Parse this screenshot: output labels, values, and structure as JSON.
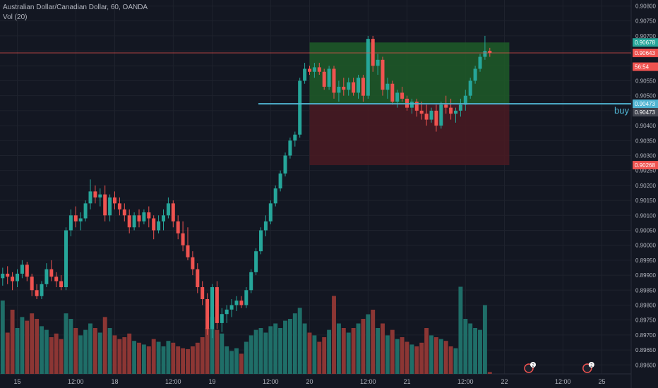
{
  "header": {
    "symbol_line": "Australian Dollar/Canadian Dollar, 60, OANDA",
    "volume_line": "Vol (20)"
  },
  "colors": {
    "background": "#131722",
    "grid": "#1e222d",
    "up": "#26a69a",
    "down": "#ef5350",
    "vol_up": "#1f6e68",
    "vol_down": "#8c3634",
    "axis_text": "#b2b5be",
    "entry_line": "#4fb3d1",
    "profit_zone": "#1f5c28",
    "loss_zone": "#4a1a22",
    "last_price_tag": "#ef5350"
  },
  "chart_data": {
    "type": "candlestick",
    "title": "Australian Dollar/Canadian Dollar, 60, OANDA",
    "indicator": "Vol (20)",
    "y_range": [
      0.8957,
      0.9082
    ],
    "y_ticks": [
      "0.90800",
      "0.90750",
      "0.90700",
      "0.90650",
      "0.90600",
      "0.90550",
      "0.90500",
      "0.90450",
      "0.90400",
      "0.90350",
      "0.90300",
      "0.90250",
      "0.90200",
      "0.90150",
      "0.90100",
      "0.90050",
      "0.90000",
      "0.89950",
      "0.89900",
      "0.89850",
      "0.89800",
      "0.89750",
      "0.89700",
      "0.89650",
      "0.89600"
    ],
    "x_ticks": [
      {
        "label": "15",
        "bar": 5
      },
      {
        "label": "12:00",
        "bar": 17
      },
      {
        "label": "18",
        "bar": 25
      },
      {
        "label": "12:00",
        "bar": 37
      },
      {
        "label": "19",
        "bar": 45
      },
      {
        "label": "12:00",
        "bar": 57
      },
      {
        "label": "20",
        "bar": 65
      },
      {
        "label": "12:00",
        "bar": 77
      },
      {
        "label": "21",
        "bar": 85
      },
      {
        "label": "12:00",
        "bar": 97
      },
      {
        "label": "22",
        "bar": 105
      },
      {
        "label": "12:00",
        "bar": 117
      },
      {
        "label": "25",
        "bar": 125
      }
    ],
    "candles": [
      {
        "o": 0.899,
        "h": 0.8994,
        "l": 0.8987,
        "c": 0.8992,
        "v": 0.9
      },
      {
        "o": 0.8992,
        "h": 0.8995,
        "l": 0.8988,
        "c": 0.8989,
        "v": 0.55
      },
      {
        "o": 0.8989,
        "h": 0.89925,
        "l": 0.89865,
        "c": 0.89905,
        "v": 0.8
      },
      {
        "o": 0.89905,
        "h": 0.8993,
        "l": 0.8987,
        "c": 0.89895,
        "v": 0.45
      },
      {
        "o": 0.89895,
        "h": 0.8991,
        "l": 0.8985,
        "c": 0.8988,
        "v": 0.7
      },
      {
        "o": 0.8988,
        "h": 0.8992,
        "l": 0.8986,
        "c": 0.89905,
        "v": 0.5
      },
      {
        "o": 0.89905,
        "h": 0.8995,
        "l": 0.8989,
        "c": 0.89935,
        "v": 0.62
      },
      {
        "o": 0.89935,
        "h": 0.89945,
        "l": 0.8988,
        "c": 0.89895,
        "v": 0.58
      },
      {
        "o": 0.89895,
        "h": 0.89905,
        "l": 0.8983,
        "c": 0.8985,
        "v": 0.66
      },
      {
        "o": 0.8985,
        "h": 0.8987,
        "l": 0.8982,
        "c": 0.8983,
        "v": 0.6
      },
      {
        "o": 0.8983,
        "h": 0.8988,
        "l": 0.8982,
        "c": 0.8987,
        "v": 0.52
      },
      {
        "o": 0.8987,
        "h": 0.8994,
        "l": 0.8986,
        "c": 0.8992,
        "v": 0.48
      },
      {
        "o": 0.8992,
        "h": 0.8995,
        "l": 0.8988,
        "c": 0.89895,
        "v": 0.4
      },
      {
        "o": 0.89895,
        "h": 0.8991,
        "l": 0.8986,
        "c": 0.8988,
        "v": 0.44
      },
      {
        "o": 0.8988,
        "h": 0.899,
        "l": 0.8985,
        "c": 0.8986,
        "v": 0.38
      },
      {
        "o": 0.8986,
        "h": 0.9006,
        "l": 0.8985,
        "c": 0.9005,
        "v": 0.66
      },
      {
        "o": 0.9005,
        "h": 0.9012,
        "l": 0.9003,
        "c": 0.901,
        "v": 0.6
      },
      {
        "o": 0.901,
        "h": 0.9013,
        "l": 0.9006,
        "c": 0.9008,
        "v": 0.5
      },
      {
        "o": 0.9008,
        "h": 0.9011,
        "l": 0.9005,
        "c": 0.9009,
        "v": 0.42
      },
      {
        "o": 0.9009,
        "h": 0.9015,
        "l": 0.9008,
        "c": 0.9014,
        "v": 0.48
      },
      {
        "o": 0.9014,
        "h": 0.9022,
        "l": 0.9012,
        "c": 0.9018,
        "v": 0.55
      },
      {
        "o": 0.9018,
        "h": 0.902,
        "l": 0.9014,
        "c": 0.9016,
        "v": 0.5
      },
      {
        "o": 0.9016,
        "h": 0.9019,
        "l": 0.9013,
        "c": 0.9017,
        "v": 0.45
      },
      {
        "o": 0.9017,
        "h": 0.902,
        "l": 0.9008,
        "c": 0.901,
        "v": 0.62
      },
      {
        "o": 0.901,
        "h": 0.9017,
        "l": 0.9008,
        "c": 0.9016,
        "v": 0.5
      },
      {
        "o": 0.9016,
        "h": 0.9018,
        "l": 0.9012,
        "c": 0.9014,
        "v": 0.42
      },
      {
        "o": 0.9014,
        "h": 0.9016,
        "l": 0.901,
        "c": 0.9012,
        "v": 0.38
      },
      {
        "o": 0.9012,
        "h": 0.9014,
        "l": 0.9008,
        "c": 0.901,
        "v": 0.4
      },
      {
        "o": 0.901,
        "h": 0.9012,
        "l": 0.9004,
        "c": 0.9006,
        "v": 0.44
      },
      {
        "o": 0.9006,
        "h": 0.9011,
        "l": 0.9005,
        "c": 0.901,
        "v": 0.36
      },
      {
        "o": 0.901,
        "h": 0.9012,
        "l": 0.9006,
        "c": 0.9008,
        "v": 0.34
      },
      {
        "o": 0.9008,
        "h": 0.9012,
        "l": 0.9007,
        "c": 0.9011,
        "v": 0.32
      },
      {
        "o": 0.9011,
        "h": 0.9013,
        "l": 0.9006,
        "c": 0.9009,
        "v": 0.3
      },
      {
        "o": 0.9009,
        "h": 0.901,
        "l": 0.9002,
        "c": 0.9005,
        "v": 0.38
      },
      {
        "o": 0.9005,
        "h": 0.901,
        "l": 0.9004,
        "c": 0.9008,
        "v": 0.35
      },
      {
        "o": 0.9008,
        "h": 0.9012,
        "l": 0.9005,
        "c": 0.901,
        "v": 0.3
      },
      {
        "o": 0.901,
        "h": 0.9016,
        "l": 0.9009,
        "c": 0.9014,
        "v": 0.36
      },
      {
        "o": 0.9014,
        "h": 0.9015,
        "l": 0.9006,
        "c": 0.9008,
        "v": 0.34
      },
      {
        "o": 0.9008,
        "h": 0.901,
        "l": 0.9002,
        "c": 0.9004,
        "v": 0.3
      },
      {
        "o": 0.9004,
        "h": 0.9008,
        "l": 0.8998,
        "c": 0.9,
        "v": 0.28
      },
      {
        "o": 0.9,
        "h": 0.9006,
        "l": 0.8995,
        "c": 0.8996,
        "v": 0.27
      },
      {
        "o": 0.8996,
        "h": 0.8998,
        "l": 0.899,
        "c": 0.8992,
        "v": 0.3
      },
      {
        "o": 0.8992,
        "h": 0.8994,
        "l": 0.8984,
        "c": 0.8986,
        "v": 0.34
      },
      {
        "o": 0.8986,
        "h": 0.8988,
        "l": 0.898,
        "c": 0.8982,
        "v": 0.4
      },
      {
        "o": 0.8982,
        "h": 0.8984,
        "l": 0.897,
        "c": 0.8972,
        "v": 0.5
      },
      {
        "o": 0.8972,
        "h": 0.8987,
        "l": 0.8969,
        "c": 0.8986,
        "v": 0.62
      },
      {
        "o": 0.8986,
        "h": 0.8988,
        "l": 0.8972,
        "c": 0.8974,
        "v": 0.48
      },
      {
        "o": 0.8974,
        "h": 0.8979,
        "l": 0.8971,
        "c": 0.8977,
        "v": 0.44
      },
      {
        "o": 0.8977,
        "h": 0.898,
        "l": 0.8974,
        "c": 0.89785,
        "v": 0.3
      },
      {
        "o": 0.89785,
        "h": 0.8982,
        "l": 0.8976,
        "c": 0.898,
        "v": 0.25
      },
      {
        "o": 0.898,
        "h": 0.8983,
        "l": 0.8978,
        "c": 0.89815,
        "v": 0.28
      },
      {
        "o": 0.89815,
        "h": 0.8983,
        "l": 0.8979,
        "c": 0.898,
        "v": 0.22
      },
      {
        "o": 0.898,
        "h": 0.8986,
        "l": 0.8979,
        "c": 0.8985,
        "v": 0.35
      },
      {
        "o": 0.8985,
        "h": 0.8992,
        "l": 0.8984,
        "c": 0.8991,
        "v": 0.42
      },
      {
        "o": 0.8991,
        "h": 0.8999,
        "l": 0.899,
        "c": 0.8998,
        "v": 0.48
      },
      {
        "o": 0.8998,
        "h": 0.9006,
        "l": 0.8997,
        "c": 0.9005,
        "v": 0.5
      },
      {
        "o": 0.9005,
        "h": 0.901,
        "l": 0.9003,
        "c": 0.9008,
        "v": 0.45
      },
      {
        "o": 0.9008,
        "h": 0.9015,
        "l": 0.9007,
        "c": 0.9014,
        "v": 0.52
      },
      {
        "o": 0.9014,
        "h": 0.902,
        "l": 0.9013,
        "c": 0.9019,
        "v": 0.55
      },
      {
        "o": 0.9019,
        "h": 0.9025,
        "l": 0.9018,
        "c": 0.9024,
        "v": 0.5
      },
      {
        "o": 0.9024,
        "h": 0.9031,
        "l": 0.9023,
        "c": 0.903,
        "v": 0.58
      },
      {
        "o": 0.903,
        "h": 0.9036,
        "l": 0.9029,
        "c": 0.9035,
        "v": 0.6
      },
      {
        "o": 0.9035,
        "h": 0.9038,
        "l": 0.9033,
        "c": 0.9037,
        "v": 0.66
      },
      {
        "o": 0.9037,
        "h": 0.9056,
        "l": 0.9036,
        "c": 0.9055,
        "v": 0.72
      },
      {
        "o": 0.9055,
        "h": 0.9061,
        "l": 0.9054,
        "c": 0.9059,
        "v": 0.55
      },
      {
        "o": 0.9059,
        "h": 0.906,
        "l": 0.9057,
        "c": 0.9058,
        "v": 0.45
      },
      {
        "o": 0.9058,
        "h": 0.9061,
        "l": 0.9056,
        "c": 0.90595,
        "v": 0.42
      },
      {
        "o": 0.90595,
        "h": 0.9061,
        "l": 0.9057,
        "c": 0.9058,
        "v": 0.35
      },
      {
        "o": 0.9058,
        "h": 0.9059,
        "l": 0.9052,
        "c": 0.9053,
        "v": 0.4
      },
      {
        "o": 0.9053,
        "h": 0.906,
        "l": 0.9052,
        "c": 0.9059,
        "v": 0.48
      },
      {
        "o": 0.9059,
        "h": 0.906,
        "l": 0.9049,
        "c": 0.9051,
        "v": 0.85
      },
      {
        "o": 0.9051,
        "h": 0.9055,
        "l": 0.9048,
        "c": 0.9053,
        "v": 0.55
      },
      {
        "o": 0.9053,
        "h": 0.9056,
        "l": 0.905,
        "c": 0.9052,
        "v": 0.5
      },
      {
        "o": 0.9052,
        "h": 0.9056,
        "l": 0.905,
        "c": 0.90545,
        "v": 0.45
      },
      {
        "o": 0.90545,
        "h": 0.9056,
        "l": 0.905,
        "c": 0.9051,
        "v": 0.5
      },
      {
        "o": 0.9051,
        "h": 0.9057,
        "l": 0.9049,
        "c": 0.9056,
        "v": 0.55
      },
      {
        "o": 0.9056,
        "h": 0.9057,
        "l": 0.9048,
        "c": 0.905,
        "v": 0.6
      },
      {
        "o": 0.905,
        "h": 0.907,
        "l": 0.9049,
        "c": 0.9069,
        "v": 0.65
      },
      {
        "o": 0.9069,
        "h": 0.907,
        "l": 0.9058,
        "c": 0.906,
        "v": 0.7
      },
      {
        "o": 0.906,
        "h": 0.9064,
        "l": 0.9057,
        "c": 0.9062,
        "v": 0.5
      },
      {
        "o": 0.9062,
        "h": 0.9063,
        "l": 0.905,
        "c": 0.9052,
        "v": 0.55
      },
      {
        "o": 0.9052,
        "h": 0.9056,
        "l": 0.9049,
        "c": 0.9054,
        "v": 0.42
      },
      {
        "o": 0.9054,
        "h": 0.9055,
        "l": 0.9047,
        "c": 0.9048,
        "v": 0.48
      },
      {
        "o": 0.9048,
        "h": 0.9052,
        "l": 0.9046,
        "c": 0.9051,
        "v": 0.38
      },
      {
        "o": 0.9051,
        "h": 0.9053,
        "l": 0.9048,
        "c": 0.9049,
        "v": 0.4
      },
      {
        "o": 0.9049,
        "h": 0.905,
        "l": 0.9045,
        "c": 0.9046,
        "v": 0.35
      },
      {
        "o": 0.9046,
        "h": 0.9049,
        "l": 0.9044,
        "c": 0.9048,
        "v": 0.32
      },
      {
        "o": 0.9048,
        "h": 0.9049,
        "l": 0.9043,
        "c": 0.9045,
        "v": 0.3
      },
      {
        "o": 0.9045,
        "h": 0.9048,
        "l": 0.9042,
        "c": 0.9044,
        "v": 0.34
      },
      {
        "o": 0.9044,
        "h": 0.9047,
        "l": 0.904,
        "c": 0.9042,
        "v": 0.5
      },
      {
        "o": 0.9042,
        "h": 0.9046,
        "l": 0.9041,
        "c": 0.9045,
        "v": 0.42
      },
      {
        "o": 0.9045,
        "h": 0.9047,
        "l": 0.9038,
        "c": 0.904,
        "v": 0.4
      },
      {
        "o": 0.904,
        "h": 0.9048,
        "l": 0.9039,
        "c": 0.9047,
        "v": 0.38
      },
      {
        "o": 0.9047,
        "h": 0.905,
        "l": 0.9044,
        "c": 0.9046,
        "v": 0.36
      },
      {
        "o": 0.9046,
        "h": 0.9049,
        "l": 0.9042,
        "c": 0.9044,
        "v": 0.3
      },
      {
        "o": 0.9044,
        "h": 0.9046,
        "l": 0.9041,
        "c": 0.9045,
        "v": 0.28
      },
      {
        "o": 0.9045,
        "h": 0.9049,
        "l": 0.9043,
        "c": 0.9047,
        "v": 0.95
      },
      {
        "o": 0.9047,
        "h": 0.9052,
        "l": 0.9045,
        "c": 0.905,
        "v": 0.6
      },
      {
        "o": 0.905,
        "h": 0.9056,
        "l": 0.9049,
        "c": 0.9055,
        "v": 0.55
      },
      {
        "o": 0.9055,
        "h": 0.906,
        "l": 0.9054,
        "c": 0.9059,
        "v": 0.5
      },
      {
        "o": 0.9059,
        "h": 0.9064,
        "l": 0.9058,
        "c": 0.9063,
        "v": 0.48
      },
      {
        "o": 0.9063,
        "h": 0.907,
        "l": 0.9062,
        "c": 0.9065,
        "v": 0.75
      },
      {
        "o": 0.9065,
        "h": 0.9066,
        "l": 0.9063,
        "c": 0.90643,
        "v": 0.02
      }
    ],
    "position": {
      "side": "buy",
      "label": "buy",
      "entry": 0.90473,
      "target": 0.90678,
      "stop": 0.90268,
      "zone_start_bar": 65,
      "zone_end_bar": 106
    },
    "price_labels": [
      {
        "text": "0.90678",
        "value": 0.90678,
        "color": "#26a69a"
      },
      {
        "text": "0.90643",
        "value": 0.90643,
        "color": "#ef5350"
      },
      {
        "text": "56:54",
        "value": 0.9063,
        "color": "#ef5350",
        "offset": 14
      },
      {
        "text": "0.90473",
        "value": 0.90473,
        "color": "#4fb3d1"
      },
      {
        "text": "0.90473",
        "value": 0.90473,
        "color": "#434651",
        "offset": 12
      },
      {
        "text": "0.90268",
        "value": 0.90268,
        "color": "#ef5350"
      }
    ],
    "last_price": 0.90643,
    "event_markers": [
      {
        "bar": 110,
        "label": "2"
      },
      {
        "bar": 122,
        "label": "2"
      }
    ]
  }
}
